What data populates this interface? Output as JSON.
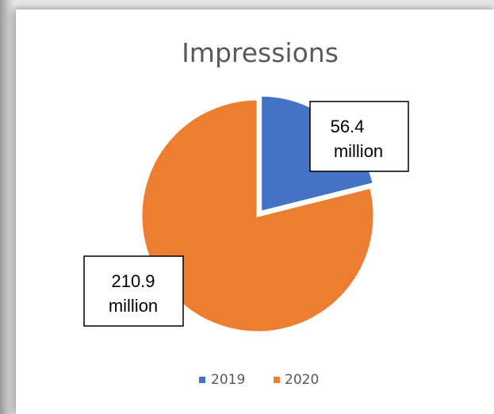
{
  "chart_data": {
    "type": "pie",
    "title": "Impressions",
    "categories": [
      "2019",
      "2020"
    ],
    "values": [
      56.4,
      210.9
    ],
    "unit": "million",
    "data_labels": [
      {
        "category": "2019",
        "value_text": "56.4",
        "unit_text": "million"
      },
      {
        "category": "2020",
        "value_text": "210.9",
        "unit_text": "million"
      }
    ],
    "colors": [
      "#4472C4",
      "#ED7D31"
    ],
    "legend": {
      "position": "bottom",
      "entries": [
        "2019",
        "2020"
      ]
    },
    "start_angle_deg": 0,
    "exploded_category": "2019"
  }
}
